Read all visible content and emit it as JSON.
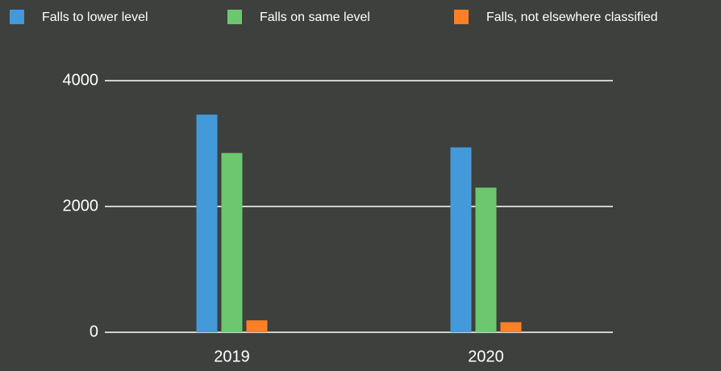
{
  "chart_data": {
    "type": "bar",
    "categories": [
      "2019",
      "2020"
    ],
    "series": [
      {
        "name": "Falls to lower level",
        "color": "#4499d9",
        "values": [
          3460,
          2940
        ]
      },
      {
        "name": "Falls on same level",
        "color": "#6cc76e",
        "values": [
          2850,
          2300
        ]
      },
      {
        "name": "Falls, not elsewhere classified",
        "color": "#ff7f27",
        "values": [
          190,
          160
        ]
      }
    ],
    "ylim": [
      0,
      4000
    ],
    "yticks": [
      0,
      2000,
      4000
    ],
    "grid": true,
    "legend": "top"
  }
}
